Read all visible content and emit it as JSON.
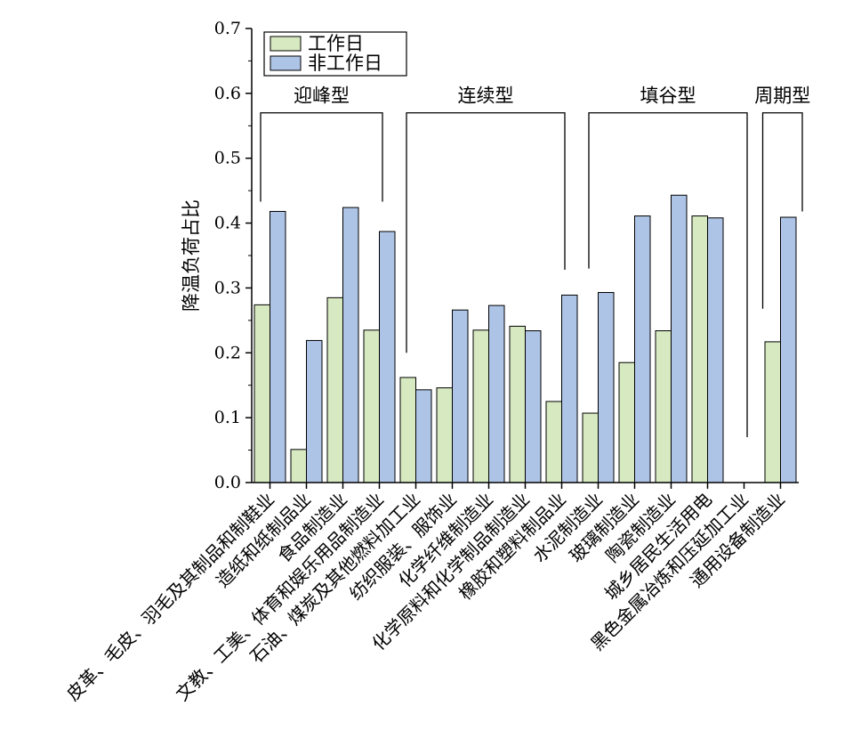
{
  "chart_data": {
    "type": "bar",
    "title": "",
    "xlabel": "",
    "ylabel": "降温负荷占比",
    "ylim": [
      0,
      0.7
    ],
    "yticks": [
      "0.0",
      "0.1",
      "0.2",
      "0.3",
      "0.4",
      "0.5",
      "0.6",
      "0.7"
    ],
    "grid": false,
    "legend_position": "top-left",
    "categories": [
      "皮革、毛皮、羽毛及其制品和制鞋业",
      "造纸和纸制品业",
      "食品制造业",
      "文教、工美、体育和娱乐用品制造业",
      "石油、煤炭及其他燃料加工业",
      "纺织服装、服饰业",
      "化学纤维制造业",
      "化学原料和化学制品制造业",
      "橡胶和塑料制品业",
      "水泥制造业",
      "玻璃制造业",
      "陶瓷制造业",
      "城乡居民生活用电",
      "黑色金属冶炼和压延加工业",
      "通用设备制造业"
    ],
    "series": [
      {
        "name": "工作日",
        "color": "#d6e9c0",
        "values": [
          0.274,
          0.051,
          0.285,
          0.235,
          0.162,
          0.146,
          0.235,
          0.241,
          0.125,
          0.107,
          0.185,
          0.234,
          0.411,
          0.0,
          0.217
        ]
      },
      {
        "name": "非工作日",
        "color": "#aec4e6",
        "values": [
          0.418,
          0.219,
          0.424,
          0.387,
          0.143,
          0.266,
          0.273,
          0.234,
          0.289,
          0.293,
          0.411,
          0.443,
          0.408,
          0.0,
          0.409
        ]
      }
    ],
    "groups": [
      {
        "label": "迎峰型",
        "from": 0,
        "to": 3,
        "left_end": 0.433,
        "right_end": 0.433
      },
      {
        "label": "连续型",
        "from": 4,
        "to": 8,
        "left_end": 0.2,
        "right_end": 0.328
      },
      {
        "label": "填谷型",
        "from": 9,
        "to": 13,
        "left_end": 0.33,
        "right_end": 0.07
      },
      {
        "label": "周期型",
        "from": 14,
        "to": 14,
        "left_end": 0.268,
        "right_end": 0.418
      }
    ]
  }
}
